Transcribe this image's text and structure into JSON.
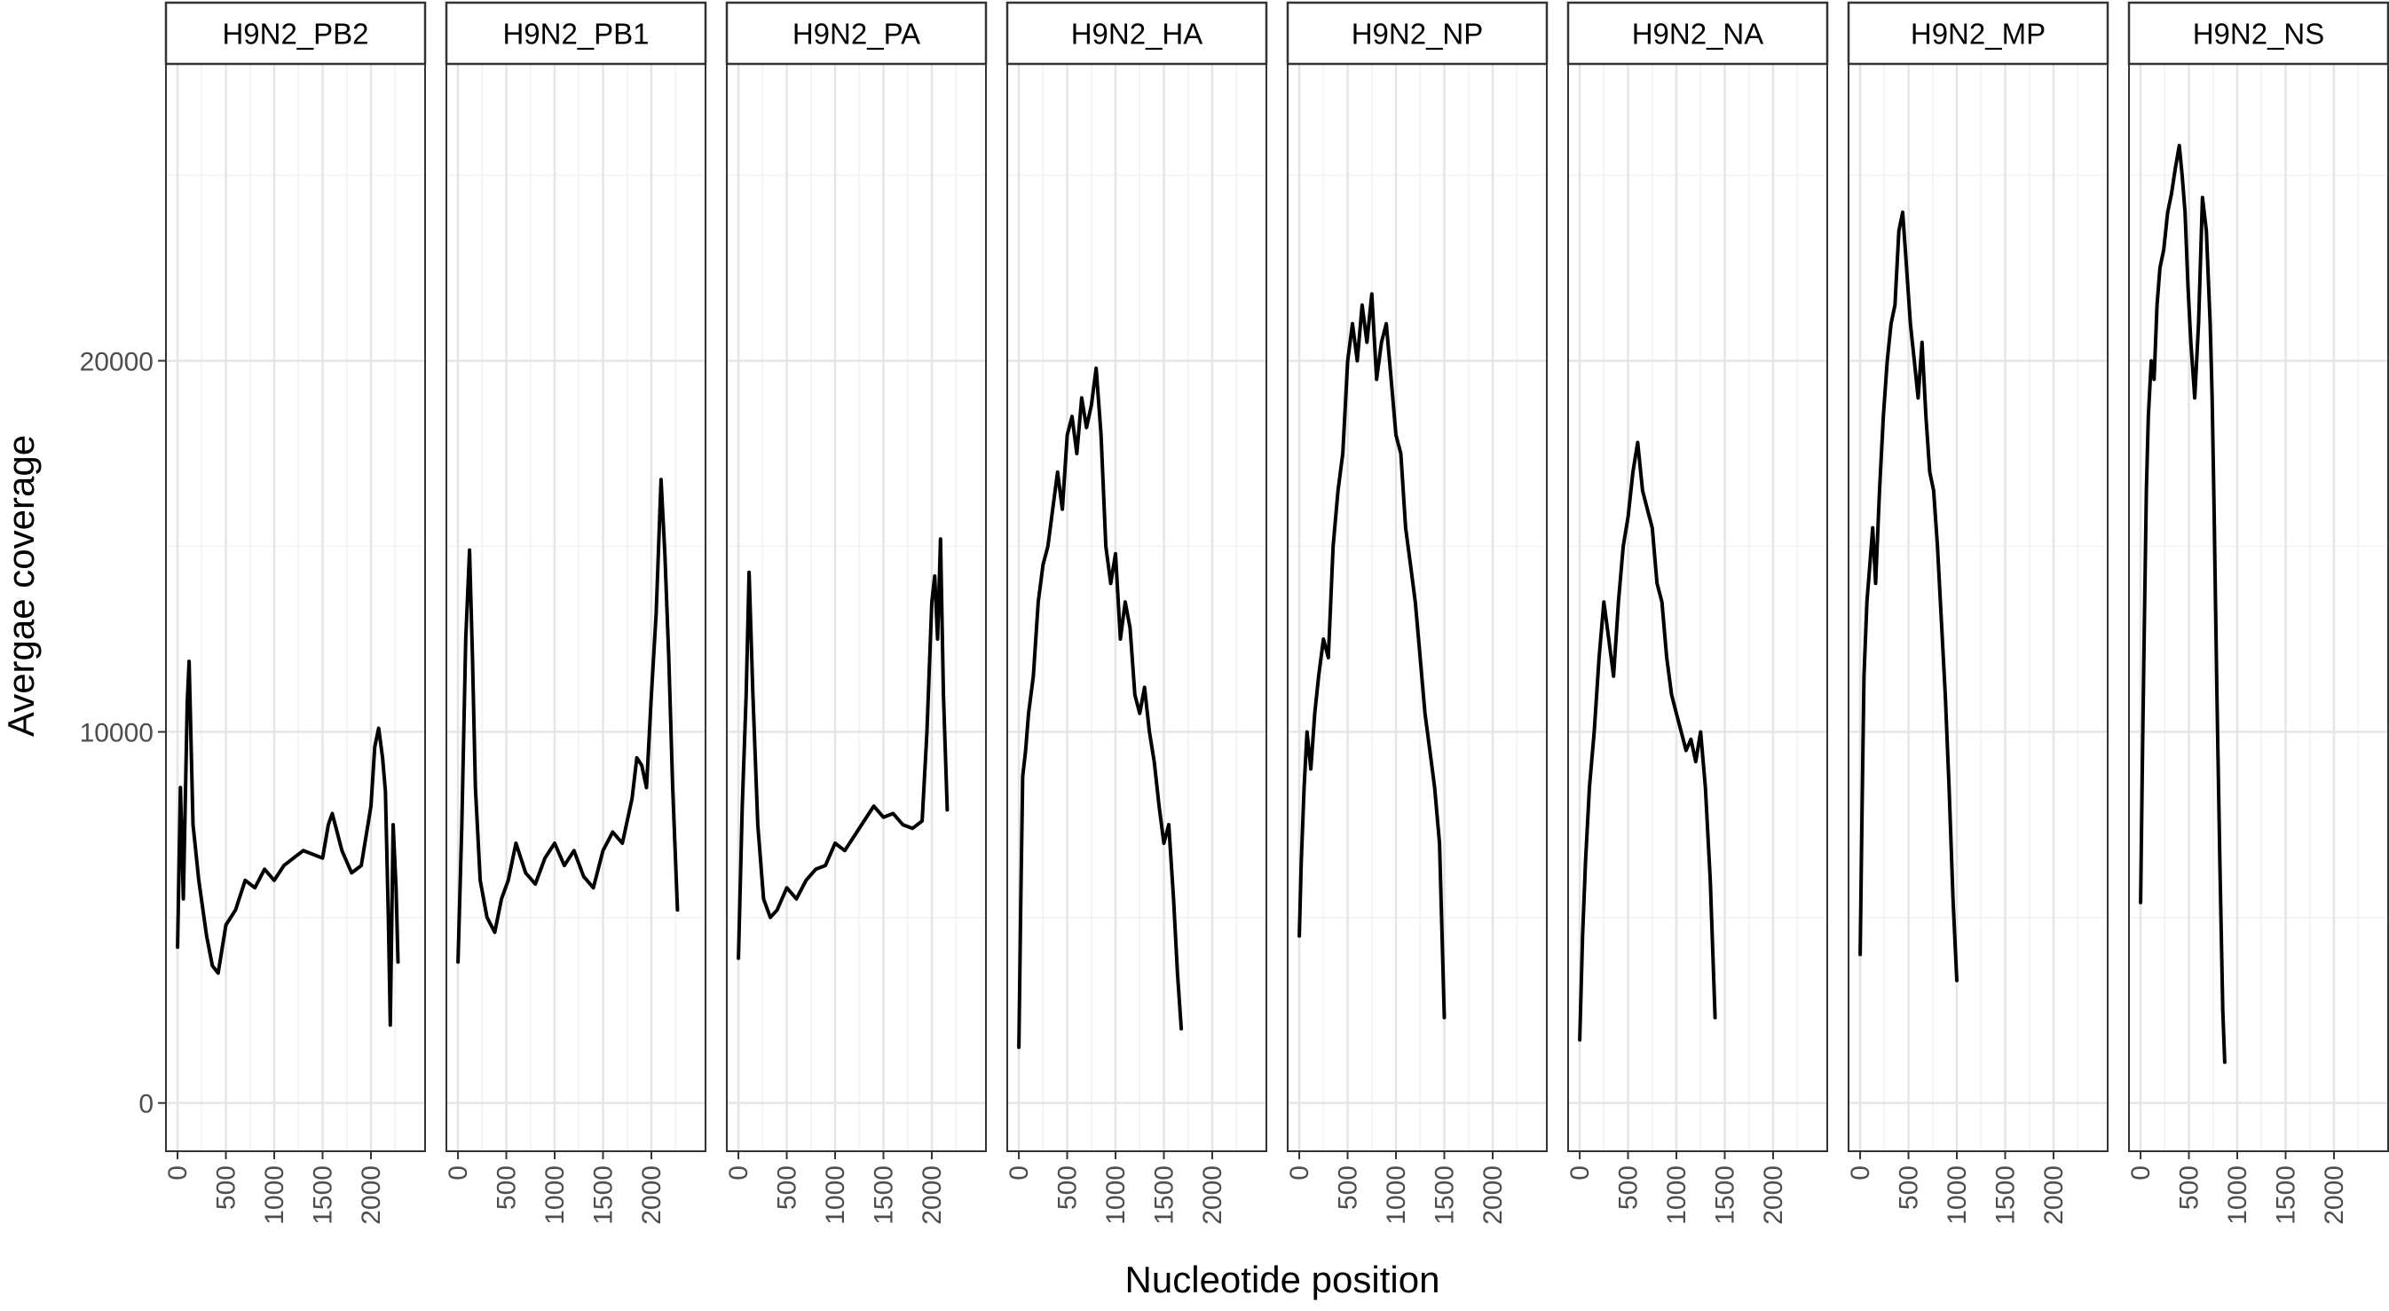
{
  "chart_data": {
    "type": "line",
    "facet_layout": "single row, shared y axis",
    "ylabel": "Avergae coverage",
    "xlabel": "Nucleotide position",
    "ylim": [
      -1300,
      28000
    ],
    "xlim": [
      -120,
      2560
    ],
    "y_ticks": [
      0,
      10000,
      20000
    ],
    "x_ticks": [
      0,
      500,
      1000,
      1500,
      2000
    ],
    "grid": true,
    "legend": "none",
    "line_color": "#000000",
    "panels": [
      {
        "name": "H9N2_PB2",
        "x": [
          0,
          30,
          60,
          100,
          120,
          160,
          220,
          300,
          360,
          420,
          500,
          600,
          700,
          800,
          900,
          1000,
          1100,
          1200,
          1300,
          1400,
          1500,
          1560,
          1600,
          1700,
          1800,
          1900,
          2000,
          2040,
          2080,
          2120,
          2150,
          2180,
          2200,
          2230,
          2260,
          2280
        ],
        "y": [
          4200,
          8500,
          5500,
          10800,
          11900,
          7500,
          6000,
          4500,
          3700,
          3500,
          4800,
          5200,
          6000,
          5800,
          6300,
          6000,
          6400,
          6600,
          6800,
          6700,
          6600,
          7500,
          7800,
          6800,
          6200,
          6400,
          8000,
          9600,
          10100,
          9300,
          8400,
          5000,
          2100,
          7500,
          5800,
          3800
        ]
      },
      {
        "name": "H9N2_PB1",
        "x": [
          0,
          40,
          80,
          120,
          150,
          180,
          230,
          300,
          380,
          450,
          520,
          600,
          700,
          800,
          900,
          1000,
          1100,
          1200,
          1300,
          1400,
          1500,
          1600,
          1700,
          1800,
          1850,
          1900,
          1950,
          2000,
          2050,
          2100,
          2140,
          2180,
          2220,
          2270
        ],
        "y": [
          3800,
          7500,
          12500,
          14900,
          12000,
          8500,
          6000,
          5000,
          4600,
          5500,
          6000,
          7000,
          6200,
          5900,
          6600,
          7000,
          6400,
          6800,
          6100,
          5800,
          6800,
          7300,
          7000,
          8200,
          9300,
          9100,
          8500,
          11000,
          13200,
          16800,
          14800,
          12000,
          8500,
          5200
        ]
      },
      {
        "name": "H9N2_PA",
        "x": [
          0,
          40,
          80,
          110,
          150,
          200,
          260,
          330,
          400,
          500,
          600,
          700,
          800,
          900,
          1000,
          1100,
          1200,
          1300,
          1400,
          1500,
          1600,
          1700,
          1800,
          1900,
          1950,
          2000,
          2030,
          2060,
          2090,
          2120,
          2160
        ],
        "y": [
          3900,
          8000,
          11000,
          14300,
          11000,
          7500,
          5500,
          5000,
          5200,
          5800,
          5500,
          6000,
          6300,
          6400,
          7000,
          6800,
          7200,
          7600,
          8000,
          7700,
          7800,
          7500,
          7400,
          7600,
          10000,
          13500,
          14200,
          12500,
          15200,
          11000,
          7900
        ]
      },
      {
        "name": "H9N2_HA",
        "x": [
          0,
          20,
          40,
          70,
          100,
          150,
          200,
          250,
          300,
          350,
          400,
          450,
          500,
          550,
          600,
          650,
          700,
          750,
          800,
          850,
          900,
          950,
          1000,
          1050,
          1100,
          1150,
          1200,
          1250,
          1300,
          1350,
          1400,
          1450,
          1500,
          1550,
          1600,
          1640,
          1680
        ],
        "y": [
          1500,
          5500,
          8800,
          9500,
          10500,
          11500,
          13500,
          14500,
          15000,
          16000,
          17000,
          16000,
          18000,
          18500,
          17500,
          19000,
          18200,
          18800,
          19800,
          18000,
          15000,
          14000,
          14800,
          12500,
          13500,
          12800,
          11000,
          10500,
          11200,
          10000,
          9200,
          8000,
          7000,
          7500,
          5500,
          3500,
          2000
        ]
      },
      {
        "name": "H9N2_NP",
        "x": [
          0,
          20,
          50,
          80,
          120,
          160,
          200,
          250,
          300,
          350,
          400,
          450,
          500,
          550,
          600,
          650,
          700,
          750,
          800,
          850,
          900,
          950,
          1000,
          1050,
          1100,
          1150,
          1200,
          1250,
          1300,
          1350,
          1400,
          1450,
          1500
        ],
        "y": [
          4500,
          6500,
          8500,
          10000,
          9000,
          10500,
          11500,
          12500,
          12000,
          15000,
          16500,
          17500,
          20000,
          21000,
          20000,
          21500,
          20500,
          21800,
          19500,
          20500,
          21000,
          19500,
          18000,
          17500,
          15500,
          14500,
          13500,
          12000,
          10500,
          9500,
          8500,
          7000,
          2300
        ]
      },
      {
        "name": "H9N2_NA",
        "x": [
          0,
          30,
          60,
          100,
          150,
          200,
          250,
          300,
          350,
          400,
          450,
          500,
          550,
          600,
          650,
          700,
          750,
          800,
          850,
          900,
          950,
          1000,
          1050,
          1100,
          1150,
          1200,
          1250,
          1300,
          1350,
          1400
        ],
        "y": [
          1700,
          4500,
          6500,
          8500,
          10000,
          12000,
          13500,
          12500,
          11500,
          13500,
          15000,
          15800,
          17000,
          17800,
          16500,
          16000,
          15500,
          14000,
          13500,
          12000,
          11000,
          10500,
          10000,
          9500,
          9800,
          9200,
          10000,
          8500,
          6000,
          2300
        ]
      },
      {
        "name": "H9N2_MP",
        "x": [
          0,
          20,
          40,
          70,
          100,
          130,
          160,
          200,
          240,
          280,
          320,
          360,
          400,
          440,
          480,
          520,
          560,
          600,
          640,
          680,
          720,
          760,
          800,
          840,
          880,
          920,
          960,
          1000
        ],
        "y": [
          4000,
          8000,
          11500,
          13500,
          14500,
          15500,
          14000,
          16500,
          18500,
          20000,
          21000,
          21500,
          23500,
          24000,
          22500,
          21000,
          20000,
          19000,
          20500,
          18500,
          17000,
          16500,
          15000,
          13000,
          11000,
          8500,
          5500,
          3300
        ]
      },
      {
        "name": "H9N2_NS",
        "x": [
          0,
          20,
          40,
          60,
          80,
          110,
          140,
          170,
          200,
          240,
          280,
          320,
          360,
          400,
          430,
          460,
          490,
          520,
          560,
          600,
          640,
          680,
          720,
          740,
          760,
          790,
          820,
          850,
          870
        ],
        "y": [
          5400,
          9500,
          13000,
          16500,
          18500,
          20000,
          19500,
          21500,
          22500,
          23000,
          24000,
          24500,
          25200,
          25800,
          25000,
          24000,
          22000,
          20500,
          19000,
          21000,
          24400,
          23500,
          21000,
          19000,
          16000,
          11000,
          6500,
          2500,
          1100
        ]
      }
    ]
  }
}
